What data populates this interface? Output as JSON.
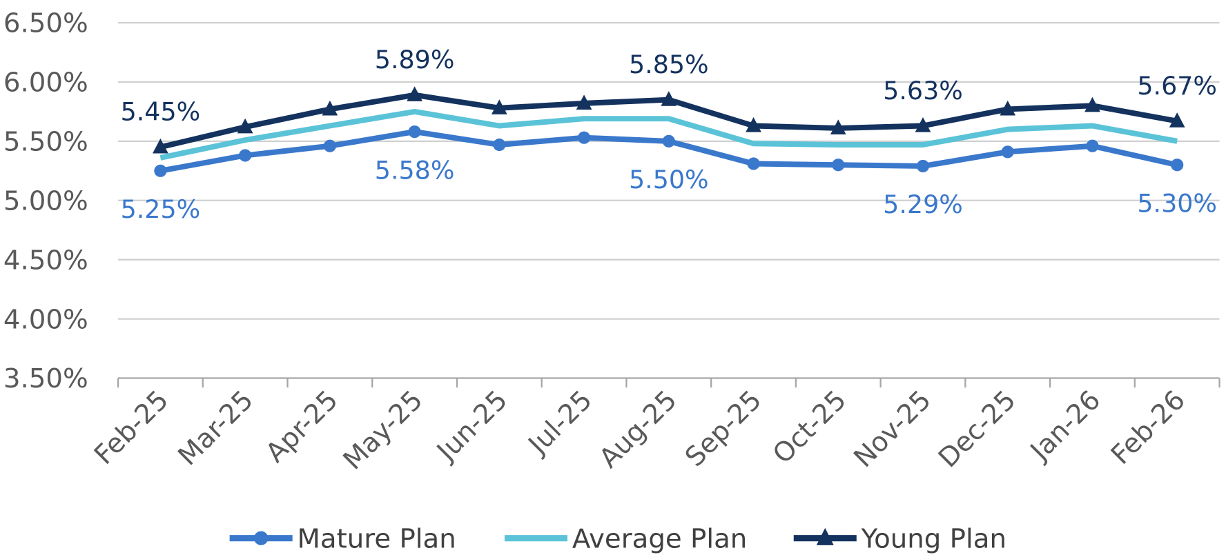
{
  "chart_data": {
    "type": "line",
    "title": "",
    "xlabel": "",
    "ylabel": "",
    "categories": [
      "Feb-25",
      "Mar-25",
      "Apr-25",
      "May-25",
      "Jun-25",
      "Jul-25",
      "Aug-25",
      "Sep-25",
      "Oct-25",
      "Nov-25",
      "Dec-25",
      "Jan-26",
      "Feb-26"
    ],
    "ylim": [
      3.5,
      6.5
    ],
    "yticks": [
      "3.50%",
      "4.00%",
      "4.50%",
      "5.00%",
      "5.50%",
      "6.00%",
      "6.50%"
    ],
    "ytick_values": [
      3.5,
      4.0,
      4.5,
      5.0,
      5.5,
      6.0,
      6.5
    ],
    "grid": true,
    "legend_position": "bottom",
    "series": [
      {
        "name": "Mature Plan",
        "color": "#3a78cc",
        "marker": "circle",
        "values": [
          5.25,
          5.38,
          5.46,
          5.58,
          5.47,
          5.53,
          5.5,
          5.31,
          5.3,
          5.29,
          5.41,
          5.46,
          5.3
        ],
        "data_labels": [
          {
            "index": 0,
            "text": "5.25%"
          },
          {
            "index": 3,
            "text": "5.58%"
          },
          {
            "index": 6,
            "text": "5.50%"
          },
          {
            "index": 9,
            "text": "5.29%"
          },
          {
            "index": 12,
            "text": "5.30%"
          }
        ]
      },
      {
        "name": "Average Plan",
        "color": "#5bc3d8",
        "marker": "none",
        "values": [
          5.36,
          5.51,
          5.63,
          5.75,
          5.63,
          5.69,
          5.69,
          5.48,
          5.47,
          5.47,
          5.6,
          5.63,
          5.5
        ],
        "data_labels": []
      },
      {
        "name": "Young Plan",
        "color": "#14325e",
        "marker": "triangle",
        "values": [
          5.45,
          5.62,
          5.77,
          5.89,
          5.78,
          5.82,
          5.85,
          5.63,
          5.61,
          5.63,
          5.77,
          5.8,
          5.67
        ],
        "data_labels": [
          {
            "index": 0,
            "text": "5.45%"
          },
          {
            "index": 3,
            "text": "5.89%"
          },
          {
            "index": 6,
            "text": "5.85%"
          },
          {
            "index": 9,
            "text": "5.63%"
          },
          {
            "index": 12,
            "text": "5.67%"
          }
        ]
      }
    ]
  }
}
